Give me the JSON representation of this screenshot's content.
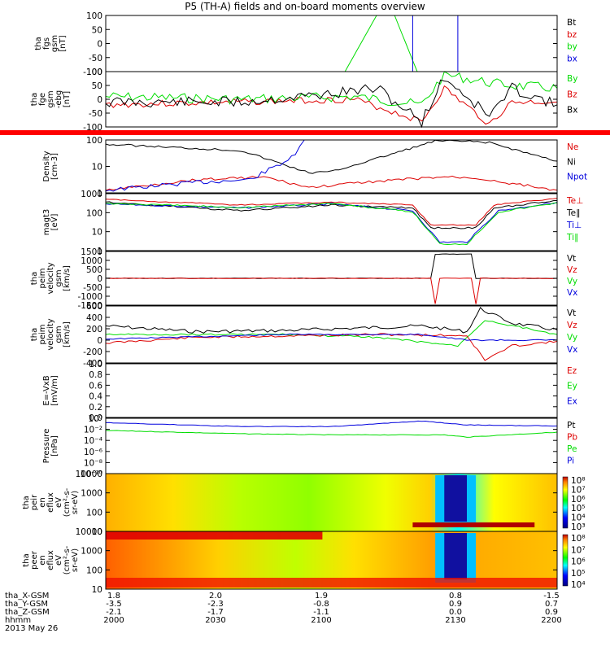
{
  "title": "P5 (TH-A) fields and on-board moments overview",
  "colors": {
    "black": "#000000",
    "red": "#dd0000",
    "green": "#00dd00",
    "blue": "#0000dd",
    "alarm": "#ff0000"
  },
  "panels": [
    {
      "id": "fgs",
      "ylabel": [
        "tha",
        "fgs",
        "gsm",
        "[nT]"
      ],
      "ticks": [
        "100",
        "50",
        "0",
        "-50",
        "-100"
      ],
      "legend": [
        {
          "text": "Bt",
          "color": "black"
        },
        {
          "text": "bz",
          "color": "red"
        },
        {
          "text": "by",
          "color": "green"
        },
        {
          "text": "bx",
          "color": "blue"
        }
      ]
    },
    {
      "id": "fge",
      "ylabel": [
        "tha",
        "fge",
        "gsm",
        "-ebg",
        "[nT]"
      ],
      "ticks": [
        "100",
        "50",
        "0",
        "-50",
        "-100"
      ],
      "legend": [
        {
          "text": "By",
          "color": "green"
        },
        {
          "text": "Bz",
          "color": "red"
        },
        {
          "text": "Bx",
          "color": "black"
        }
      ]
    },
    {
      "id": "density",
      "ylabel": [
        "Density",
        "[cm-3]"
      ],
      "ticks": [
        "100",
        "10",
        "1"
      ],
      "legend": [
        {
          "text": "Ne",
          "color": "red"
        },
        {
          "text": "Ni",
          "color": "black"
        },
        {
          "text": "Npot",
          "color": "blue"
        }
      ]
    },
    {
      "id": "temp",
      "ylabel": [
        "magt3",
        "[eV]"
      ],
      "ticks": [
        "1000",
        "100",
        "10",
        "1"
      ],
      "legend": [
        {
          "text": "Te⊥",
          "color": "red"
        },
        {
          "text": "Te∥",
          "color": "black"
        },
        {
          "text": "Ti⊥",
          "color": "blue"
        },
        {
          "text": "Ti∥",
          "color": "green"
        }
      ]
    },
    {
      "id": "velocity_e",
      "ylabel": [
        "tha",
        "peim",
        "velocity",
        "gsm",
        "[km/s]"
      ],
      "ticks": [
        "1500",
        "1000",
        "500",
        "0",
        "-500",
        "-1000",
        "-1500"
      ],
      "legend": [
        {
          "text": "Vt",
          "color": "black"
        },
        {
          "text": "Vz",
          "color": "red"
        },
        {
          "text": "Vy",
          "color": "green"
        },
        {
          "text": "Vx",
          "color": "blue"
        }
      ]
    },
    {
      "id": "velocity_i",
      "ylabel": [
        "tha",
        "peim",
        "velocity",
        "gsm",
        "[km/s]"
      ],
      "ticks": [
        "600",
        "400",
        "200",
        "0",
        "-200",
        "-400"
      ],
      "legend": [
        {
          "text": "Vt",
          "color": "black"
        },
        {
          "text": "Vz",
          "color": "red"
        },
        {
          "text": "Vy",
          "color": "green"
        },
        {
          "text": "Vx",
          "color": "blue"
        }
      ]
    },
    {
      "id": "efield",
      "ylabel": [
        "E=-VxB",
        "[mV/m]"
      ],
      "ticks": [
        "1.0",
        "0.8",
        "0.6",
        "0.4",
        "0.2",
        "0.0"
      ],
      "legend": [
        {
          "text": "Ez",
          "color": "red"
        },
        {
          "text": "Ey",
          "color": "green"
        },
        {
          "text": "Ex",
          "color": "blue"
        }
      ]
    },
    {
      "id": "pressure",
      "ylabel": [
        "Pressure",
        "[nPa]"
      ],
      "ticks": [
        "10⁰",
        "10⁻²",
        "10⁻⁴",
        "10⁻⁶",
        "10⁻⁸",
        "10⁻¹⁰"
      ],
      "legend": [
        {
          "text": "Pt",
          "color": "black"
        },
        {
          "text": "Pb",
          "color": "red"
        },
        {
          "text": "Pe",
          "color": "green"
        },
        {
          "text": "Pi",
          "color": "blue"
        }
      ]
    },
    {
      "id": "ion_spec",
      "ylabel": [
        "tha",
        "peir",
        "en",
        "eflux",
        "eV",
        "(cm²-s-",
        "sr-eV)"
      ],
      "ticks": [
        "10000",
        "1000",
        "100",
        "10"
      ],
      "colorbar": [
        "10⁸",
        "10⁷",
        "10⁶",
        "10⁵",
        "10⁴",
        "10³"
      ]
    },
    {
      "id": "elec_spec",
      "ylabel": [
        "tha",
        "peer",
        "en",
        "eflux",
        "eV",
        "(cm²-s-",
        "sr-eV)"
      ],
      "ticks": [
        "10000",
        "1000",
        "100",
        "10"
      ],
      "colorbar": [
        "10⁸",
        "10⁷",
        "10⁶",
        "10⁵",
        "10⁴"
      ]
    }
  ],
  "footer": {
    "rows": [
      {
        "label": "tha_X-GSM",
        "values": [
          "1.8",
          "2.0",
          "1.9",
          "0.8",
          "-1.5"
        ]
      },
      {
        "label": "tha_Y-GSM",
        "values": [
          "-3.5",
          "-2.3",
          "-0.8",
          "0.9",
          "0.7"
        ]
      },
      {
        "label": "tha_Z-GSM",
        "values": [
          "-2.1",
          "-1.7",
          "-1.1",
          "0.0",
          "0.9"
        ]
      },
      {
        "label": "hhmm",
        "values": [
          "2000",
          "2030",
          "2100",
          "2130",
          "2200"
        ]
      }
    ],
    "date": "2013 May 26"
  },
  "chart_data": {
    "type": "line",
    "title": "P5 (TH-A) fields and on-board moments overview",
    "x": [
      "2000",
      "2030",
      "2100",
      "2130",
      "2200"
    ],
    "xlabel": "hhmm",
    "xrange": [
      "2000",
      "2200"
    ],
    "series": [
      {
        "name": "Bt",
        "panel": "fgs",
        "values": [
          0,
          0,
          0,
          0,
          0
        ]
      },
      {
        "name": "by",
        "panel": "fgs",
        "values": [
          0,
          0,
          0,
          0,
          0
        ]
      },
      {
        "name": "Bx",
        "panel": "fge",
        "values": [
          -10,
          -15,
          -5,
          20,
          -10
        ]
      },
      {
        "name": "By",
        "panel": "fge",
        "values": [
          0,
          -5,
          10,
          30,
          25
        ]
      },
      {
        "name": "Bz",
        "panel": "fge",
        "values": [
          -20,
          -15,
          -20,
          -60,
          -10
        ]
      },
      {
        "name": "Ne",
        "panel": "density",
        "values": [
          1.5,
          5,
          2,
          5,
          1.8
        ]
      },
      {
        "name": "Ni",
        "panel": "density",
        "values": [
          100,
          20,
          5,
          150,
          70
        ]
      },
      {
        "name": "Npot",
        "panel": "density",
        "values": [
          1.5,
          4,
          200,
          null,
          null
        ]
      },
      {
        "name": "Te⊥",
        "panel": "temp",
        "values": [
          400,
          100,
          300,
          15,
          700
        ]
      },
      {
        "name": "Te∥",
        "panel": "temp",
        "values": [
          350,
          80,
          250,
          12,
          550
        ]
      },
      {
        "name": "Ti⊥",
        "panel": "temp",
        "values": [
          250,
          70,
          300,
          4,
          400
        ]
      },
      {
        "name": "Ti∥",
        "panel": "temp",
        "values": [
          260,
          75,
          320,
          3,
          380
        ]
      },
      {
        "name": "Vx (ions)",
        "panel": "velocity_i",
        "values": [
          40,
          -10,
          0,
          20,
          -20
        ]
      },
      {
        "name": "Vt (ions)",
        "panel": "velocity_i",
        "values": [
          130,
          30,
          60,
          100,
          50
        ]
      },
      {
        "name": "Vy (ions)",
        "panel": "velocity_i",
        "values": [
          50,
          0,
          -20,
          -100,
          100
        ]
      },
      {
        "name": "Vz (ions)",
        "panel": "velocity_i",
        "values": [
          -60,
          20,
          0,
          -30,
          -50
        ]
      },
      {
        "name": "Pt",
        "panel": "pressure",
        "values": [
          2,
          0.3,
          0.4,
          0.4,
          0.5
        ]
      },
      {
        "name": "Pe",
        "panel": "pressure",
        "values": [
          0.02,
          0.01,
          0.01,
          0.004,
          0.02
        ]
      }
    ]
  }
}
